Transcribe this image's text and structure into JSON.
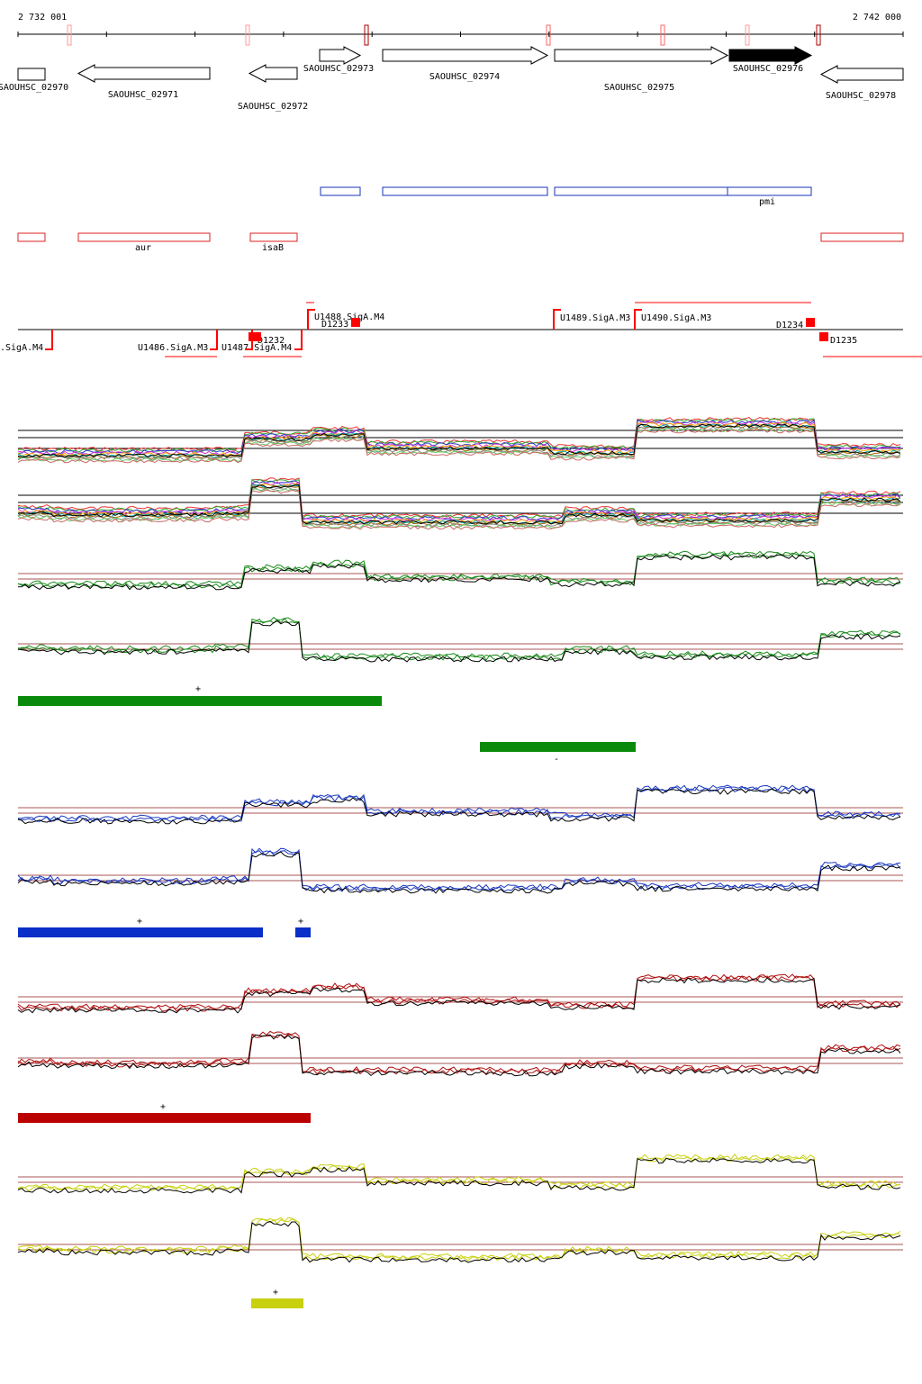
{
  "header": {
    "start": "2 732 001",
    "end": "2 742 000"
  },
  "genes": [
    "SAOUHSC_02970",
    "SAOUHSC_02971",
    "SAOUHSC_02972",
    "SAOUHSC_02973",
    "SAOUHSC_02974",
    "SAOUHSC_02975",
    "SAOUHSC_02976",
    "SAOUHSC_02978"
  ],
  "operons": {
    "labels": [
      "pmi"
    ]
  },
  "regulons": {
    "labels": [
      "aur",
      "isaB"
    ]
  },
  "promoters": [
    ".SigA.M4",
    "U1486.SigA.M3",
    "U1487.SigA.M4",
    "D1232",
    "U1488.SigA.M4",
    "D1233",
    "U1489.SigA.M3",
    "U1490.SigA.M3",
    "D1234",
    "D1235"
  ],
  "strand_marks": [
    "+",
    "-",
    "+",
    "+",
    "+",
    "+"
  ]
}
